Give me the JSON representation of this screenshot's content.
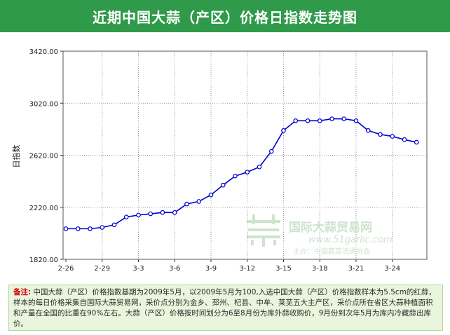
{
  "header": {
    "title": "近期中国大蒜（产区）价格日指数走势图"
  },
  "watermark": {
    "name": "国际大蒜贸易网",
    "url": "www.51garlic.com",
    "sponsor": "主办：中国蔬菜流通协会"
  },
  "note": {
    "label": "备注:",
    "text": "中国大蒜（产区）价格指数基期为2009年5月，以2009年5月为100,入选中国大蒜（产区）价格指数样本为5.5cm的红蒜，样本的每日价格采集自国际大蒜贸易网，采价点分别为金乡、邳州、杞县、中牟、莱芜五大主产区，采价点所在省区大蒜种植面积和产量在全国的比重在90%左右。大蒜（产区）价格按时间划分为6至8月份为库外蒜收购价，9月份到次年5月为库内冷藏蒜出库价。"
  },
  "colors": {
    "title_bar": "#2f9a4a",
    "line": "#0000cc",
    "note_bg": "#e9f5dc",
    "note_label": "#d40000"
  },
  "chart_data": {
    "type": "line",
    "title": "",
    "xlabel": "",
    "ylabel": "日指数",
    "ylim": [
      1820,
      3420
    ],
    "yticks": [
      1820,
      2220,
      2620,
      3020,
      3420
    ],
    "ytick_labels": [
      "1820.00",
      "2220.00",
      "2620.00",
      "3020.00",
      "3420.00"
    ],
    "xtick_labels": [
      "2-26",
      "2-29",
      "3-3",
      "3-6",
      "3-9",
      "3-12",
      "3-15",
      "3-18",
      "3-21",
      "3-24"
    ],
    "grid": true,
    "legend": "none",
    "series": [
      {
        "values": [
          2055,
          2055,
          2055,
          2065,
          2085,
          2145,
          2160,
          2170,
          2180,
          2180,
          2245,
          2265,
          2315,
          2390,
          2460,
          2490,
          2530,
          2650,
          2810,
          2885,
          2885,
          2885,
          2900,
          2900,
          2885,
          2810,
          2780,
          2765,
          2740,
          2720
        ]
      }
    ]
  }
}
